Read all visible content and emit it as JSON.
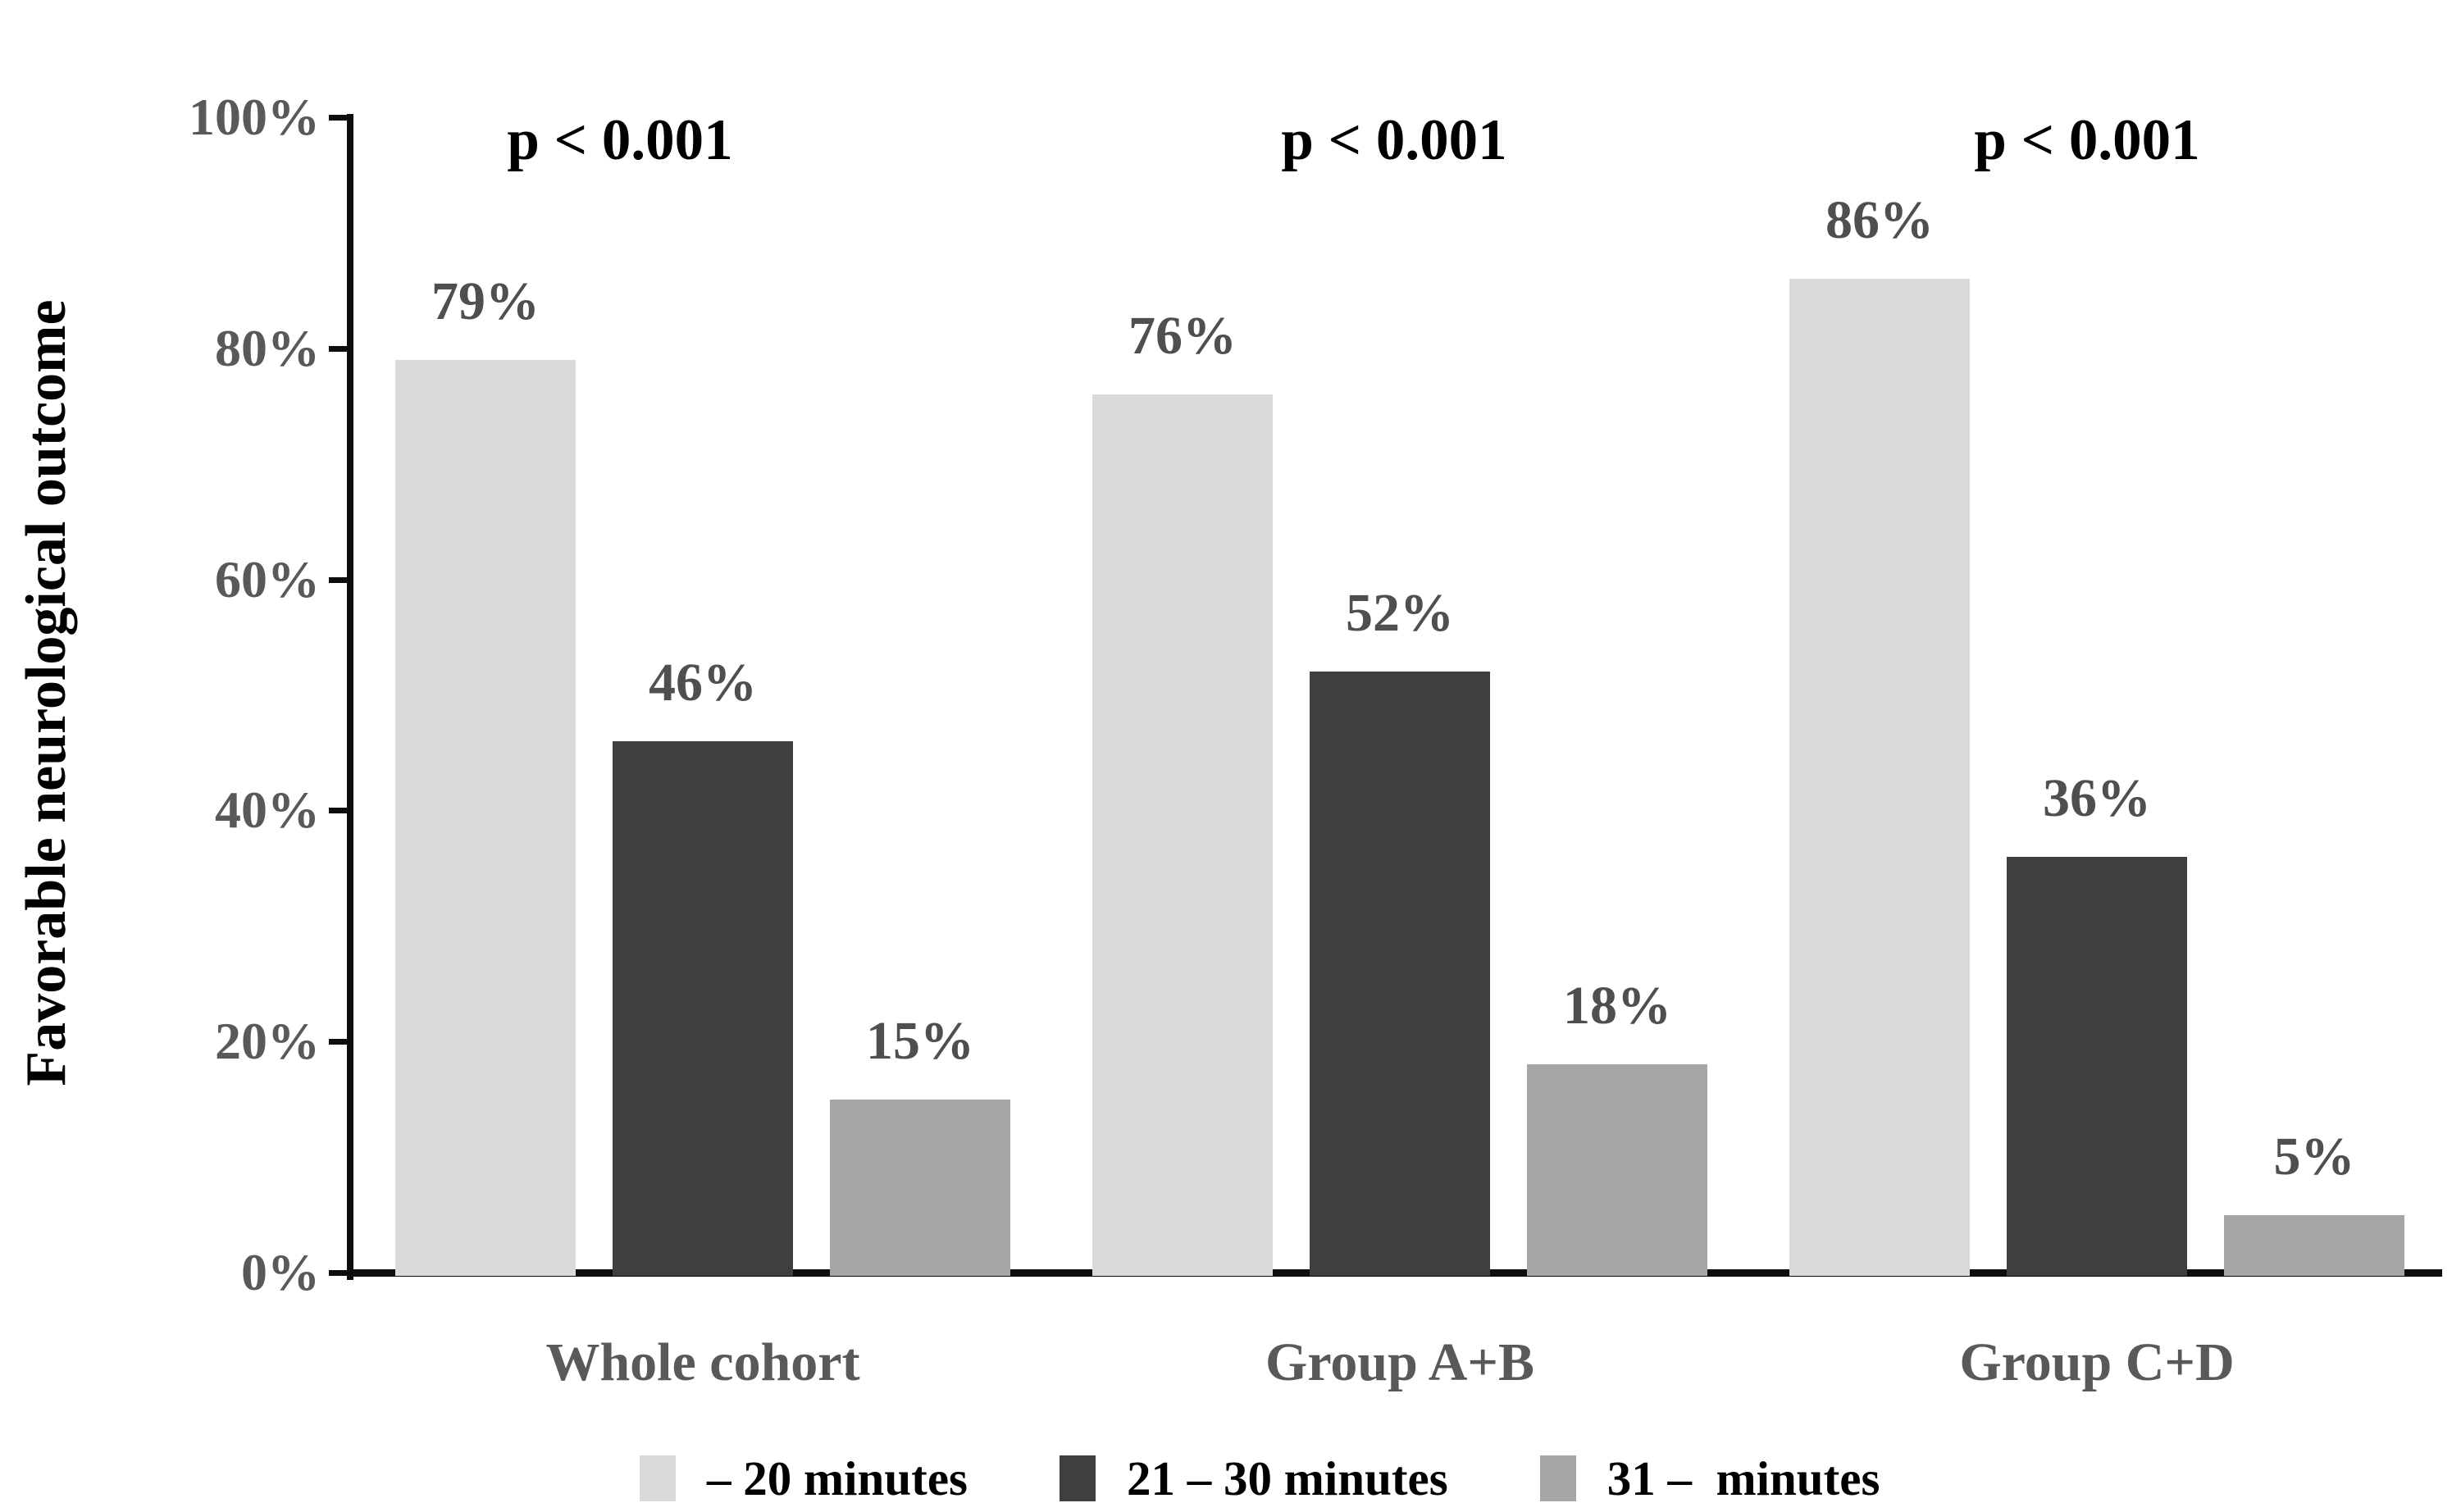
{
  "figure": {
    "background": "#FFFFFF"
  },
  "chart_data": {
    "type": "bar",
    "title": "",
    "xlabel": "",
    "ylabel": "Favorable neurological outcome",
    "ylim": [
      0,
      100
    ],
    "grid": false,
    "legend_position": "bottom",
    "y_axis": {
      "ticks": [
        {
          "label": "0%",
          "value": 0
        },
        {
          "label": "20%",
          "value": 20
        },
        {
          "label": "40%",
          "value": 40
        },
        {
          "label": "60%",
          "value": 60
        },
        {
          "label": "80%",
          "value": 80
        },
        {
          "label": "100%",
          "value": 100
        }
      ]
    },
    "categories": [
      "Whole cohort",
      "Group A+B",
      "Group C+D"
    ],
    "series": [
      {
        "name": "– 20 minutes",
        "color": "#D9D9D9",
        "values": [
          79,
          76,
          86
        ],
        "labels": [
          "79%",
          "76%",
          "86%"
        ]
      },
      {
        "name": "21 – 30 minutes",
        "color": "#3F3F3F",
        "values": [
          46,
          52,
          36
        ],
        "labels": [
          "46%",
          "52%",
          "36%"
        ]
      },
      {
        "name": "31 –  minutes",
        "color": "#A6A6A6",
        "values": [
          15,
          18,
          5
        ],
        "labels": [
          "15%",
          "18%",
          "5%"
        ]
      }
    ],
    "annotations": [
      {
        "text": "p < 0.001",
        "group": "Whole cohort"
      },
      {
        "text": "p < 0.001",
        "group": "Group A+B"
      },
      {
        "text": "p < 0.001",
        "group": "Group C+D"
      }
    ]
  },
  "colors": {
    "axis": "#0D0D0D",
    "tick_label": "#595959",
    "category_label": "#595959",
    "bar_value_label": "#4F4F4F",
    "annotation_text": "#000000",
    "legend_text": "#000000"
  }
}
